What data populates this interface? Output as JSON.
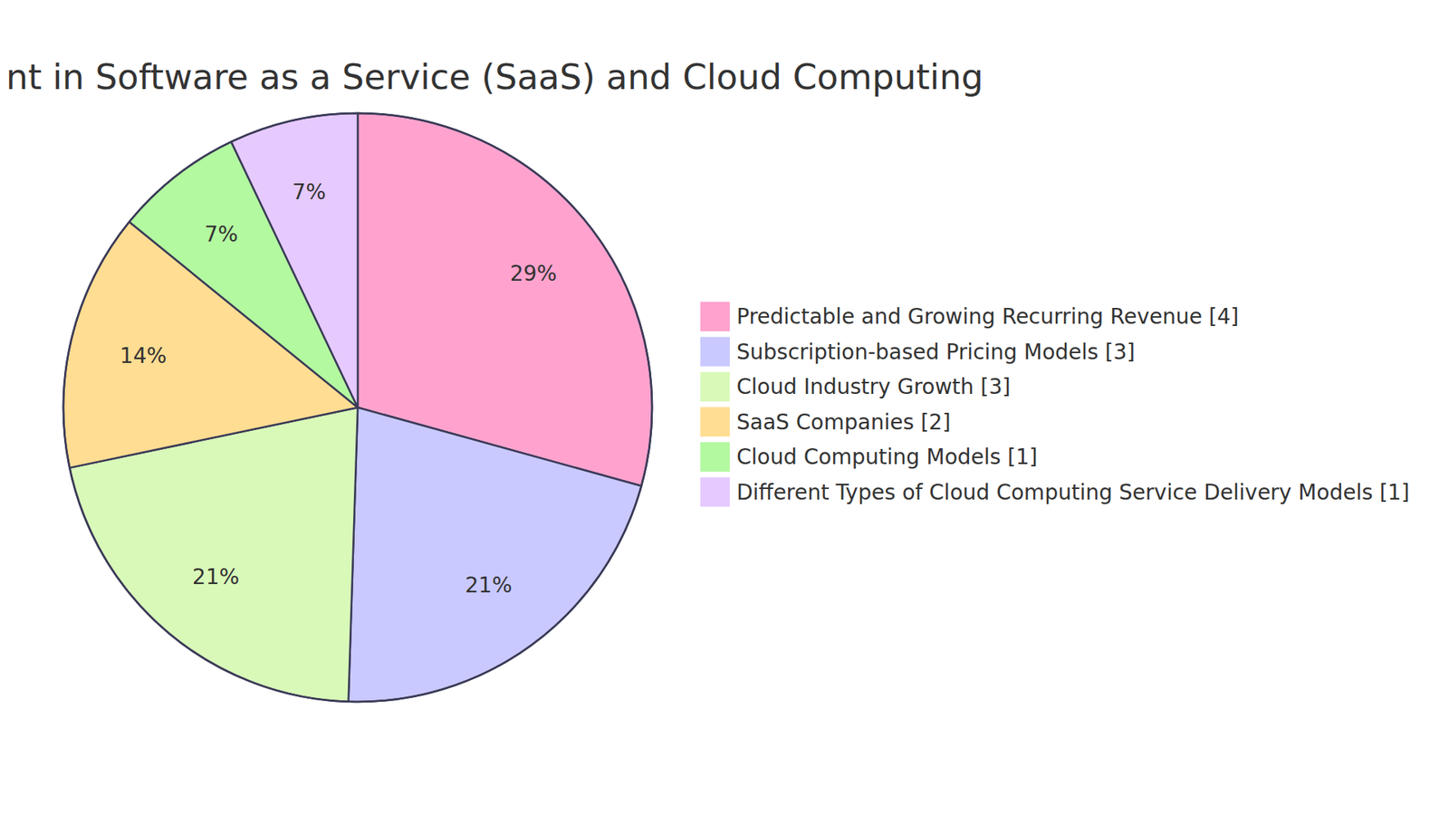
{
  "chart_data": {
    "type": "pie",
    "title": "nt in Software as a Service (SaaS) and Cloud Computing",
    "categories": [
      "Predictable and Growing Recurring Revenue [4]",
      "Subscription-based Pricing Models [3]",
      "Cloud Industry Growth [3]",
      "SaaS Companies [2]",
      "Cloud Computing Models [1]",
      "Different Types of Cloud Computing Service Delivery Models [1]"
    ],
    "values": [
      29,
      21,
      21,
      14,
      7,
      7
    ],
    "value_labels": [
      "29%",
      "21%",
      "21%",
      "14%",
      "7%",
      "7%"
    ],
    "colors": [
      "#ffa3ce",
      "#c9c9ff",
      "#d9f9b9",
      "#ffdd92",
      "#b3f9a0",
      "#e6caff"
    ],
    "data_labels": true,
    "legend": "right"
  }
}
